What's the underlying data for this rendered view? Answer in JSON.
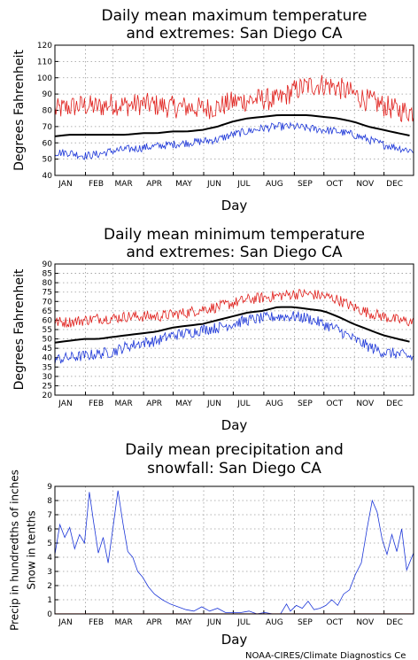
{
  "footer": "NOAA-CIRES/Climate Diagnostics Ce",
  "colors": {
    "mean": "#000000",
    "high_extreme": "#e0201c",
    "low_extreme": "#1c36d8",
    "grid": "#9a9a9a"
  },
  "months": [
    "JAN",
    "FEB",
    "MAR",
    "APR",
    "MAY",
    "JUN",
    "JUL",
    "AUG",
    "SEP",
    "OCT",
    "NOV",
    "DEC"
  ],
  "chart_data": [
    {
      "type": "line",
      "title": [
        "Daily mean maximum temperature",
        "and extremes: San Diego CA"
      ],
      "xlabel": "Day",
      "ylabel": "Degrees Fahrenheit",
      "xlim": [
        1,
        365
      ],
      "ylim": [
        40,
        120
      ],
      "yticks": [
        40,
        50,
        60,
        70,
        80,
        90,
        100,
        110,
        120
      ],
      "grid": true,
      "series": [
        {
          "role": "high_extreme",
          "x": [
            1,
            15,
            31,
            45,
            59,
            74,
            90,
            105,
            120,
            135,
            151,
            166,
            181,
            196,
            212,
            227,
            243,
            258,
            273,
            288,
            304,
            319,
            334,
            349,
            365
          ],
          "values": [
            80,
            82,
            83,
            82,
            84,
            83,
            84,
            83,
            82,
            82,
            81,
            82,
            85,
            86,
            87,
            86,
            92,
            95,
            96,
            94,
            90,
            86,
            83,
            80,
            79
          ]
        },
        {
          "role": "mean",
          "x": [
            1,
            15,
            31,
            45,
            59,
            74,
            90,
            105,
            120,
            135,
            151,
            166,
            181,
            196,
            212,
            227,
            243,
            258,
            273,
            288,
            304,
            319,
            334,
            349,
            365
          ],
          "values": [
            64,
            65,
            65,
            65,
            65,
            65,
            66,
            66,
            67,
            67,
            68,
            70,
            73,
            75,
            76,
            77,
            77,
            77,
            76,
            75,
            73,
            70,
            68,
            66,
            64
          ]
        },
        {
          "role": "low_extreme",
          "x": [
            1,
            15,
            31,
            45,
            59,
            74,
            90,
            105,
            120,
            135,
            151,
            166,
            181,
            196,
            212,
            227,
            243,
            258,
            273,
            288,
            304,
            319,
            334,
            349,
            365
          ],
          "values": [
            54,
            54,
            52,
            53,
            55,
            56,
            57,
            58,
            59,
            60,
            61,
            62,
            65,
            67,
            69,
            70,
            70,
            69,
            68,
            67,
            65,
            62,
            59,
            57,
            55
          ]
        }
      ]
    },
    {
      "type": "line",
      "title": [
        "Daily mean minimum temperature",
        "and extremes: San Diego CA"
      ],
      "xlabel": "Day",
      "ylabel": "Degrees Fahrenheit",
      "xlim": [
        1,
        365
      ],
      "ylim": [
        20,
        90
      ],
      "yticks": [
        20,
        25,
        30,
        35,
        40,
        45,
        50,
        55,
        60,
        65,
        70,
        75,
        80,
        85,
        90
      ],
      "grid": true,
      "series": [
        {
          "role": "high_extreme",
          "x": [
            1,
            15,
            31,
            45,
            59,
            74,
            90,
            105,
            120,
            135,
            151,
            166,
            181,
            196,
            212,
            227,
            243,
            258,
            273,
            288,
            304,
            319,
            334,
            349,
            365
          ],
          "values": [
            59,
            59,
            60,
            61,
            61,
            62,
            62,
            62,
            63,
            64,
            66,
            67,
            69,
            71,
            72,
            73,
            74,
            74,
            73,
            71,
            67,
            64,
            62,
            60,
            59
          ]
        },
        {
          "role": "mean",
          "x": [
            1,
            15,
            31,
            45,
            59,
            74,
            90,
            105,
            120,
            135,
            151,
            166,
            181,
            196,
            212,
            227,
            243,
            258,
            273,
            288,
            304,
            319,
            334,
            349,
            365
          ],
          "values": [
            48,
            49,
            50,
            50,
            51,
            52,
            53,
            54,
            56,
            57,
            58,
            60,
            62,
            64,
            65,
            67,
            67,
            66,
            65,
            62,
            58,
            55,
            52,
            50,
            48
          ]
        },
        {
          "role": "low_extreme",
          "x": [
            1,
            15,
            31,
            45,
            59,
            74,
            90,
            105,
            120,
            135,
            151,
            166,
            181,
            196,
            212,
            227,
            243,
            258,
            273,
            288,
            304,
            319,
            334,
            349,
            365
          ],
          "values": [
            39,
            40,
            41,
            42,
            43,
            46,
            48,
            49,
            52,
            53,
            55,
            56,
            58,
            60,
            61,
            62,
            62,
            61,
            58,
            55,
            50,
            46,
            43,
            42,
            40
          ]
        }
      ]
    },
    {
      "type": "line",
      "title": [
        "Daily mean precipitation and",
        "snowfall: San Diego CA"
      ],
      "xlabel": "Day",
      "ylabel": [
        "Precip in hundredths of inches",
        "Snow in tenths"
      ],
      "xlim": [
        1,
        365
      ],
      "ylim": [
        0,
        9
      ],
      "yticks": [
        0,
        1,
        2,
        3,
        4,
        5,
        6,
        7,
        8,
        9
      ],
      "grid": true,
      "series": [
        {
          "role": "precipitation",
          "x": [
            1,
            6,
            11,
            16,
            21,
            26,
            31,
            36,
            40,
            45,
            50,
            55,
            60,
            65,
            70,
            75,
            80,
            85,
            90,
            96,
            102,
            110,
            118,
            126,
            134,
            142,
            150,
            158,
            166,
            174,
            182,
            190,
            198,
            206,
            214,
            222,
            230,
            236,
            240,
            246,
            252,
            258,
            264,
            270,
            276,
            282,
            288,
            294,
            300,
            306,
            312,
            318,
            323,
            328,
            333,
            338,
            343,
            348,
            353,
            358,
            365
          ],
          "values": [
            4.2,
            6.3,
            5.4,
            6.1,
            4.6,
            5.6,
            5.0,
            8.6,
            6.6,
            4.3,
            5.4,
            3.6,
            6.1,
            8.7,
            6.4,
            4.4,
            4.0,
            3.0,
            2.6,
            1.9,
            1.4,
            1.0,
            0.7,
            0.5,
            0.3,
            0.2,
            0.5,
            0.2,
            0.4,
            0.1,
            0.1,
            0.1,
            0.2,
            0.0,
            0.1,
            0.0,
            0.0,
            0.7,
            0.2,
            0.6,
            0.4,
            0.9,
            0.3,
            0.4,
            0.6,
            1.0,
            0.6,
            1.4,
            1.7,
            2.8,
            3.6,
            6.1,
            8.0,
            7.2,
            5.3,
            4.2,
            5.6,
            4.4,
            6.0,
            3.1,
            4.3
          ]
        },
        {
          "role": "snowfall",
          "x": [
            1,
            365
          ],
          "values": [
            0,
            0
          ]
        }
      ]
    }
  ]
}
